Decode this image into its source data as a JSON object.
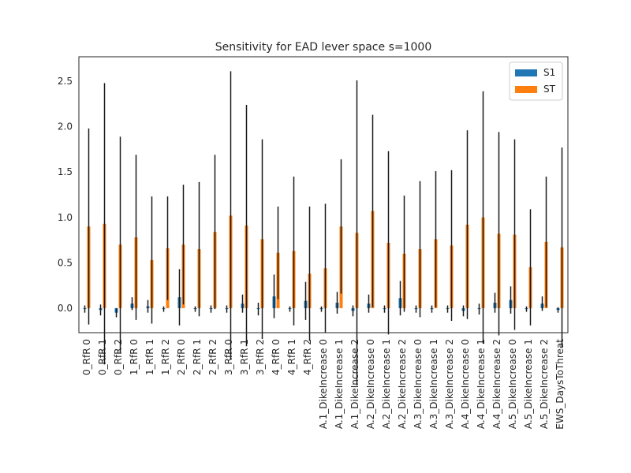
{
  "chart_data": {
    "type": "bar",
    "title": "Sensitivity for EAD lever space s=1000",
    "xlabel": "",
    "ylabel": "",
    "ylim": [
      -0.27,
      2.77
    ],
    "yticks": [
      0.0,
      0.5,
      1.0,
      1.5,
      2.0,
      2.5
    ],
    "ytick_labels": [
      "0.0",
      "0.5",
      "1.0",
      "1.5",
      "2.0",
      "2.5"
    ],
    "grid": false,
    "legend_position": "top-right",
    "categories": [
      "0_RfR 0",
      "0_RfR 1",
      "0_RfR 2",
      "1_RfR 0",
      "1_RfR 1",
      "1_RfR 2",
      "2_RfR 0",
      "2_RfR 1",
      "2_RfR 2",
      "3_RfR 0",
      "3_RfR 1",
      "3_RfR 2",
      "4_RfR 0",
      "4_RfR 1",
      "4_RfR 2",
      "A.1_DikeIncrease 0",
      "A.1_DikeIncrease 1",
      "A.1_DikeIncrease 2",
      "A.2_DikeIncrease 0",
      "A.2_DikeIncrease 1",
      "A.2_DikeIncrease 2",
      "A.3_DikeIncrease 0",
      "A.3_DikeIncrease 1",
      "A.3_DikeIncrease 2",
      "A.4_DikeIncrease 0",
      "A.4_DikeIncrease 1",
      "A.4_DikeIncrease 2",
      "A.5_DikeIncrease 0",
      "A.5_DikeIncrease 1",
      "A.5_DikeIncrease 2",
      "EWS_DaysToThreat"
    ],
    "series": [
      {
        "name": "S1",
        "color": "#1f77b4",
        "values": [
          -0.01,
          -0.02,
          -0.05,
          0.05,
          0.02,
          -0.01,
          0.12,
          -0.01,
          -0.01,
          -0.01,
          0.05,
          -0.01,
          0.13,
          -0.01,
          0.08,
          -0.01,
          0.06,
          -0.03,
          0.05,
          -0.01,
          0.11,
          -0.01,
          -0.01,
          -0.01,
          -0.03,
          -0.01,
          0.06,
          0.09,
          -0.01,
          0.05,
          -0.02
        ],
        "errors": [
          0.04,
          0.06,
          0.05,
          0.07,
          0.07,
          0.03,
          0.31,
          0.03,
          0.04,
          0.04,
          0.1,
          0.07,
          0.24,
          0.03,
          0.21,
          0.03,
          0.12,
          0.06,
          0.1,
          0.04,
          0.19,
          0.04,
          0.04,
          0.04,
          0.06,
          0.06,
          0.11,
          0.15,
          0.03,
          0.08,
          0.03
        ]
      },
      {
        "name": "ST",
        "color": "#ff7f0e",
        "values": [
          0.9,
          0.93,
          0.7,
          0.78,
          0.53,
          0.66,
          0.7,
          0.65,
          0.84,
          1.02,
          0.91,
          0.76,
          0.61,
          0.63,
          0.38,
          0.44,
          0.9,
          0.83,
          1.07,
          0.72,
          0.6,
          0.65,
          0.76,
          0.69,
          0.92,
          1.0,
          0.82,
          0.81,
          0.45,
          0.73,
          0.67
        ],
        "errors": [
          1.08,
          1.55,
          1.19,
          0.91,
          0.7,
          0.57,
          0.66,
          0.74,
          0.85,
          1.59,
          1.33,
          1.1,
          0.51,
          0.82,
          0.74,
          0.71,
          0.74,
          1.68,
          1.06,
          1.01,
          0.64,
          0.75,
          0.75,
          0.83,
          1.04,
          1.39,
          1.12,
          1.05,
          0.64,
          0.72,
          1.1
        ]
      }
    ]
  }
}
